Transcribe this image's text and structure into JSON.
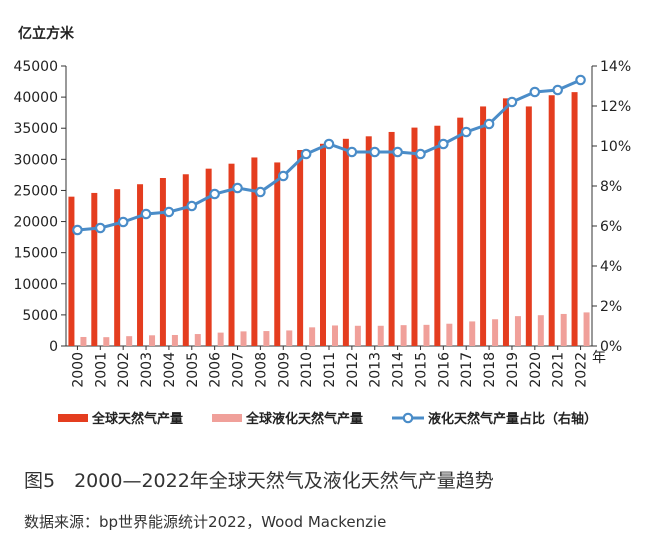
{
  "chart_data": {
    "type": "bar",
    "units": {
      "left": "亿立方米",
      "x": "年"
    },
    "categories": [
      "2000",
      "2001",
      "2002",
      "2003",
      "2004",
      "2005",
      "2006",
      "2007",
      "2008",
      "2009",
      "2010",
      "2011",
      "2012",
      "2013",
      "2014",
      "2015",
      "2016",
      "2017",
      "2018",
      "2019",
      "2020",
      "2021",
      "2022"
    ],
    "series": [
      {
        "name": "全球天然气产量",
        "axis": "left",
        "kind": "bar",
        "color": "#e43d1f",
        "values": [
          24000,
          24600,
          25200,
          26000,
          27000,
          27600,
          28500,
          29300,
          30300,
          29500,
          31500,
          32500,
          33300,
          33700,
          34400,
          35100,
          35400,
          36700,
          38500,
          39800,
          38500,
          40300,
          40800
        ]
      },
      {
        "name": "全球液化天然气产量",
        "axis": "right_scaled_left",
        "kind": "bar",
        "color": "#f0a09a",
        "values": [
          1450,
          1420,
          1580,
          1720,
          1770,
          1920,
          2150,
          2350,
          2400,
          2500,
          3000,
          3300,
          3250,
          3250,
          3350,
          3400,
          3580,
          3950,
          4300,
          4800,
          4950,
          5150,
          5400
        ]
      },
      {
        "name": "液化天然气产量占比（右轴）",
        "axis": "right",
        "kind": "line",
        "color": "#4a8cc8",
        "values": [
          5.8,
          5.9,
          6.2,
          6.6,
          6.7,
          7.0,
          7.6,
          7.9,
          7.7,
          8.5,
          9.6,
          10.1,
          9.7,
          9.7,
          9.7,
          9.6,
          10.1,
          10.7,
          11.1,
          12.2,
          12.7,
          12.8,
          13.3
        ]
      }
    ],
    "y_left": {
      "ylim": [
        0,
        45000
      ],
      "ticks": [
        "0",
        "5000",
        "10000",
        "15000",
        "20000",
        "25000",
        "30000",
        "35000",
        "40000",
        "45000"
      ]
    },
    "y_right": {
      "ylim": [
        0,
        14
      ],
      "ticks": [
        "0%",
        "2%",
        "4%",
        "6%",
        "8%",
        "10%",
        "12%",
        "14%"
      ]
    },
    "legend_position": "bottom",
    "grid": false
  },
  "caption": "图5　2000—2022年全球天然气及液化天然气产量趋势",
  "source": "数据来源：bp世界能源统计2022，Wood Mackenzie"
}
